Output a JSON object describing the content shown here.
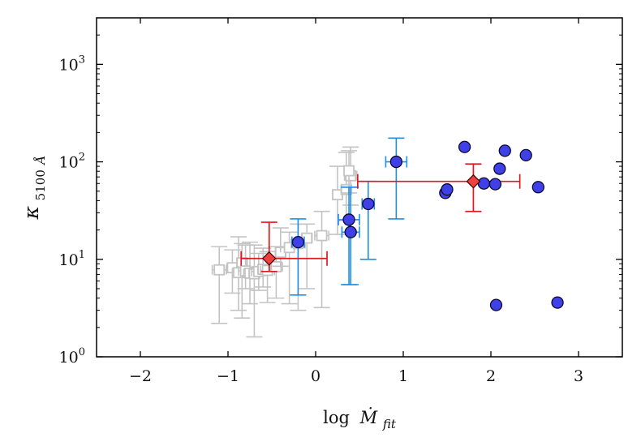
{
  "chart_data": {
    "type": "scatter",
    "title": "",
    "xlabel": {
      "prefix": "log",
      "symbol": "Ṁ",
      "subscript": "fit"
    },
    "ylabel": {
      "symbol": "κ",
      "subscript": "5100",
      "unit": "Å"
    },
    "xlim": [
      -2.5,
      3.5
    ],
    "ylim": [
      1,
      3000
    ],
    "yscale": "log",
    "x_ticks": [
      -2,
      -1,
      0,
      1,
      2,
      3
    ],
    "x_tick_labels": [
      "−2",
      "−1",
      "0",
      "1",
      "2",
      "3"
    ],
    "y_ticks": [
      1,
      10,
      100,
      1000
    ],
    "y_tick_labels": [
      {
        "base": "10",
        "exp": "0"
      },
      {
        "base": "10",
        "exp": "1"
      },
      {
        "base": "10",
        "exp": "2"
      },
      {
        "base": "10",
        "exp": "3"
      }
    ],
    "colors": {
      "gray": "#c4c4c4",
      "blue_err": "#1f8fe6",
      "blue_fill": "#4040e8",
      "blue_edge": "#0a0a30",
      "red": "#e0191e",
      "red_fill": "#ef4040"
    },
    "series": [
      {
        "name": "gray-squares",
        "marker": "square-open",
        "points": [
          {
            "x": -1.1,
            "y": 7.8,
            "xerr": 0.08,
            "ylo": 2.2,
            "yhi": 13.5
          },
          {
            "x": -0.95,
            "y": 8.2,
            "xerr": 0.06,
            "ylo": 4.5,
            "yhi": 12.5
          },
          {
            "x": -0.88,
            "y": 7.3,
            "xerr": 0.07,
            "ylo": 3.0,
            "yhi": 17.0
          },
          {
            "x": -0.84,
            "y": 9.2,
            "xerr": 0.06,
            "ylo": 2.5,
            "yhi": 14.5
          },
          {
            "x": -0.8,
            "y": 7.6,
            "xerr": 0.08,
            "ylo": 5.0,
            "yhi": 14.0
          },
          {
            "x": -0.75,
            "y": 7.2,
            "xerr": 0.07,
            "ylo": 3.5,
            "yhi": 15.0
          },
          {
            "x": -0.7,
            "y": 7.1,
            "xerr": 0.06,
            "ylo": 1.6,
            "yhi": 14.0
          },
          {
            "x": -0.65,
            "y": 7.5,
            "xerr": 0.08,
            "ylo": 4.8,
            "yhi": 11.5
          },
          {
            "x": -0.6,
            "y": 7.9,
            "xerr": 0.06,
            "ylo": 5.2,
            "yhi": 13.0
          },
          {
            "x": -0.55,
            "y": 7.7,
            "xerr": 0.08,
            "ylo": 3.6,
            "yhi": 12.0
          },
          {
            "x": -0.45,
            "y": 8.4,
            "xerr": 0.07,
            "ylo": 4.0,
            "yhi": 13.5
          },
          {
            "x": -0.4,
            "y": 11.8,
            "xerr": 0.06,
            "ylo": 8.5,
            "yhi": 21.0
          },
          {
            "x": -0.3,
            "y": 13.2,
            "xerr": 0.1,
            "ylo": 3.5,
            "yhi": 19.0
          },
          {
            "x": -0.2,
            "y": 14.5,
            "xerr": 0.08,
            "ylo": 3.0,
            "yhi": 23.0
          },
          {
            "x": -0.1,
            "y": 16.5,
            "xerr": 0.06,
            "ylo": 5.0,
            "yhi": 23.0
          },
          {
            "x": 0.07,
            "y": 17.5,
            "xerr": 0.08,
            "ylo": 3.2,
            "yhi": 31.0
          },
          {
            "x": 0.25,
            "y": 46.0,
            "xerr": 0.05,
            "ylo": 18.0,
            "yhi": 90.0
          },
          {
            "x": 0.35,
            "y": 52.0,
            "xerr": 0.06,
            "ylo": 25.0,
            "yhi": 125.0
          },
          {
            "x": 0.4,
            "y": 72.0,
            "xerr": 0.07,
            "ylo": 36.0,
            "yhi": 142.0
          },
          {
            "x": 0.38,
            "y": 81.0,
            "xerr": 0.05,
            "ylo": 48.0,
            "yhi": 130.0
          }
        ]
      },
      {
        "name": "blue-error-points",
        "marker": "circle",
        "points": [
          {
            "x": -0.2,
            "y": 15,
            "xerr": 0.07,
            "ylo": 4.3,
            "yhi": 26
          },
          {
            "x": 0.38,
            "y": 25.5,
            "xerr": 0.12,
            "ylo": 5.5,
            "yhi": 55
          },
          {
            "x": 0.4,
            "y": 19,
            "xerr": 0.1,
            "ylo": 5.5,
            "yhi": 55
          },
          {
            "x": 0.6,
            "y": 37,
            "xerr": 0.07,
            "ylo": 10,
            "yhi": 63
          },
          {
            "x": 0.92,
            "y": 100,
            "xerr": 0.12,
            "ylo": 26,
            "yhi": 175
          }
        ]
      },
      {
        "name": "blue-points",
        "marker": "circle",
        "points": [
          {
            "x": 1.48,
            "y": 48
          },
          {
            "x": 1.5,
            "y": 52
          },
          {
            "x": 1.7,
            "y": 142
          },
          {
            "x": 1.92,
            "y": 60
          },
          {
            "x": 2.05,
            "y": 59
          },
          {
            "x": 2.1,
            "y": 85
          },
          {
            "x": 2.16,
            "y": 130
          },
          {
            "x": 2.4,
            "y": 117
          },
          {
            "x": 2.54,
            "y": 55
          },
          {
            "x": 2.06,
            "y": 3.4
          },
          {
            "x": 2.76,
            "y": 3.6
          }
        ]
      },
      {
        "name": "red-diamonds",
        "marker": "diamond",
        "points": [
          {
            "x": -0.53,
            "y": 10.2,
            "xlo": -0.85,
            "xhi": 0.13,
            "ylo": 7.5,
            "yhi": 24
          },
          {
            "x": 1.8,
            "y": 63,
            "xlo": 0.48,
            "xhi": 2.33,
            "ylo": 31,
            "yhi": 95
          }
        ]
      }
    ]
  }
}
